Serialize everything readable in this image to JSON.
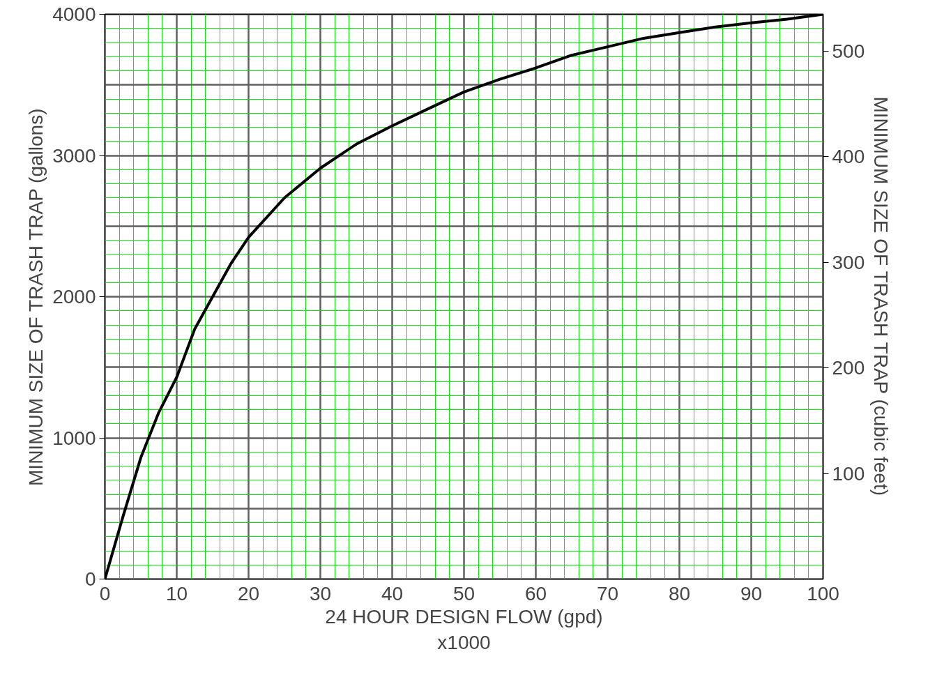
{
  "chart_data": {
    "type": "line",
    "xlabel": "24 HOUR DESIGN FLOW (gpd)\nx1000",
    "ylabel": "MINIMUM SIZE OF TRASH TRAP (gallons)",
    "y2label": "MINIMUM SIZE OF TRASH TRAP (cubic feet)",
    "xlim": [
      0,
      100
    ],
    "xticks": [
      0,
      {
        "value": 2,
        "label": null
      },
      {
        "value": 4,
        "label": null
      },
      {
        "value": 6,
        "label": null
      },
      {
        "value": 8,
        "label": null
      },
      10,
      {
        "value": 12,
        "label": null
      },
      {
        "value": 14,
        "label": null
      },
      {
        "value": 16,
        "label": null
      },
      {
        "value": 18,
        "label": null
      },
      20,
      {
        "value": 22,
        "label": null
      },
      {
        "value": 24,
        "label": null
      },
      {
        "value": 26,
        "label": null
      },
      {
        "value": 28,
        "label": null
      },
      30,
      {
        "value": 32,
        "label": null
      },
      {
        "value": 34,
        "label": null
      },
      {
        "value": 36,
        "label": null
      },
      {
        "value": 38,
        "label": null
      },
      40,
      {
        "value": 42,
        "label": null
      },
      {
        "value": 44,
        "label": null
      },
      {
        "value": 46,
        "label": null
      },
      {
        "value": 48,
        "label": null
      },
      50,
      {
        "value": 52,
        "label": null
      },
      {
        "value": 54,
        "label": null
      },
      {
        "value": 56,
        "label": null
      },
      {
        "value": 58,
        "label": null
      },
      60,
      {
        "value": 62,
        "label": null
      },
      {
        "value": 64,
        "label": null
      },
      {
        "value": 66,
        "label": null
      },
      {
        "value": 68,
        "label": null
      },
      70,
      {
        "value": 72,
        "label": null
      },
      {
        "value": 74,
        "label": null
      },
      {
        "value": 76,
        "label": null
      },
      {
        "value": 78,
        "label": null
      },
      80,
      {
        "value": 82,
        "label": null
      },
      {
        "value": 84,
        "label": null
      },
      {
        "value": 86,
        "label": null
      },
      {
        "value": 88,
        "label": null
      },
      90,
      {
        "value": 92,
        "label": null
      },
      {
        "value": 94,
        "label": null
      },
      {
        "value": 96,
        "label": null
      },
      {
        "value": 98,
        "label": null
      },
      100
    ],
    "ylim": [
      0,
      4000
    ],
    "yticks": [
      0,
      {
        "value": 100,
        "label": null
      },
      {
        "value": 200,
        "label": null
      },
      {
        "value": 300,
        "label": null
      },
      {
        "value": 400,
        "label": null
      },
      {
        "value": 500,
        "label": null
      },
      {
        "value": 600,
        "label": null
      },
      {
        "value": 700,
        "label": null
      },
      {
        "value": 800,
        "label": null
      },
      {
        "value": 900,
        "label": null
      },
      1000,
      {
        "value": 1100,
        "label": null
      },
      {
        "value": 1200,
        "label": null
      },
      {
        "value": 1300,
        "label": null
      },
      {
        "value": 1400,
        "label": null
      },
      {
        "value": 1500,
        "label": null
      },
      {
        "value": 1600,
        "label": null
      },
      {
        "value": 1700,
        "label": null
      },
      {
        "value": 1800,
        "label": null
      },
      {
        "value": 1900,
        "label": null
      },
      2000,
      {
        "value": 2100,
        "label": null
      },
      {
        "value": 2200,
        "label": null
      },
      {
        "value": 2300,
        "label": null
      },
      {
        "value": 2400,
        "label": null
      },
      {
        "value": 2500,
        "label": null
      },
      {
        "value": 2600,
        "label": null
      },
      {
        "value": 2700,
        "label": null
      },
      {
        "value": 2800,
        "label": null
      },
      {
        "value": 2900,
        "label": null
      },
      3000,
      {
        "value": 3100,
        "label": null
      },
      {
        "value": 3200,
        "label": null
      },
      {
        "value": 3300,
        "label": null
      },
      {
        "value": 3400,
        "label": null
      },
      {
        "value": 3500,
        "label": null
      },
      {
        "value": 3600,
        "label": null
      },
      {
        "value": 3700,
        "label": null
      },
      {
        "value": 3800,
        "label": null
      },
      {
        "value": 3900,
        "label": null
      },
      4000
    ],
    "y2lim": [
      0,
      535
    ],
    "y2ticks": [
      100,
      200,
      300,
      400,
      500
    ],
    "grid": true,
    "marker": "none",
    "line_style": "solid",
    "series": [
      {
        "color": "#000000",
        "x": [
          0,
          2.5,
          5,
          7.5,
          10,
          12.5,
          15,
          17.5,
          20,
          25,
          30,
          35,
          40,
          45,
          50,
          55,
          60,
          65,
          70,
          75,
          80,
          85,
          90,
          95,
          100
        ],
        "values": [
          0,
          440,
          860,
          1180,
          1430,
          1770,
          2000,
          2230,
          2420,
          2700,
          2910,
          3080,
          3210,
          3330,
          3450,
          3540,
          3620,
          3710,
          3770,
          3830,
          3870,
          3910,
          3940,
          3965,
          4000
        ]
      }
    ]
  }
}
